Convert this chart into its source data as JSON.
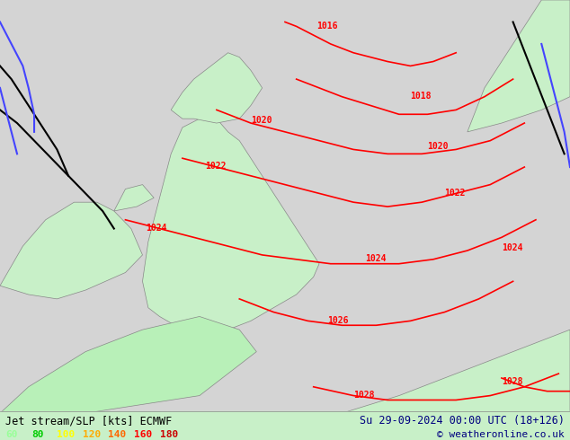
{
  "title_left": "Jet stream/SLP [kts] ECMWF",
  "title_right": "Su 29-09-2024 00:00 UTC (18+126)",
  "copyright": "© weatheronline.co.uk",
  "legend_values": [
    60,
    80,
    100,
    120,
    140,
    160,
    180
  ],
  "legend_colors": [
    "#99ff99",
    "#00cc00",
    "#ffff00",
    "#ffaa00",
    "#ff6600",
    "#ff0000",
    "#cc0000"
  ],
  "bg_color": "#d8d8d8",
  "land_color_light": "#e8e8e8",
  "land_color_green": "#c8f0c8",
  "sea_color": "#d8d8d8",
  "isobar_color": "#ff0000",
  "isobar_label_color": "#ff0000",
  "jet_colors": {
    "60": "#aaffaa",
    "80": "#00dd00",
    "100": "#ffff00",
    "120": "#ffaa00",
    "140": "#ff6600",
    "160": "#ff2200",
    "180": "#aa0000"
  },
  "bottom_bar_color": "#c8f0c8",
  "figsize": [
    6.34,
    4.9
  ],
  "dpi": 100
}
